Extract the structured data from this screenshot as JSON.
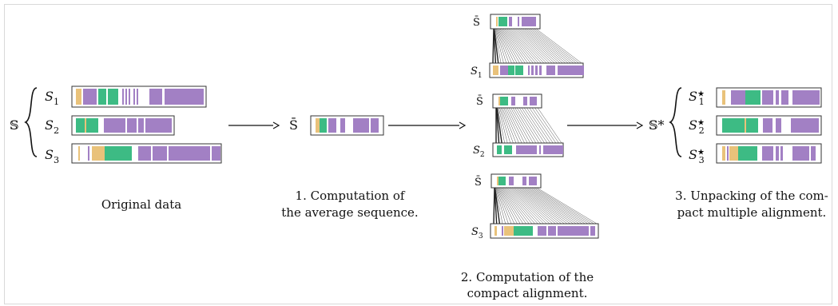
{
  "colors": {
    "tan": "#e9c27a",
    "green": "#3dbb84",
    "purple": "#a280c4",
    "box_stroke": "#333333",
    "lines": "#555555"
  },
  "labels": {
    "set": "𝕊",
    "set_star": "𝕊*",
    "s_bar": "S̄",
    "s1": "S1",
    "s2": "S2",
    "s3": "S3",
    "s1_star": "S1*",
    "s2_star": "S2*",
    "s3_star": "S3*"
  },
  "captions": {
    "original": "Original data",
    "step1_line1": "1.  Computation of",
    "step1_line2": "the average sequence.",
    "step2_line1": "2.  Computation of the",
    "step2_line2": "compact alignment.",
    "step3_line1": "3.  Unpacking of the com-",
    "step3_line2": "pact multiple alignment."
  },
  "sequences": {
    "original": [
      [
        [
          "tan",
          2,
          9
        ],
        [
          "purple",
          11,
          28
        ],
        [
          "green",
          30,
          40
        ],
        [
          "green",
          42,
          55
        ],
        [
          "purple",
          60,
          62
        ],
        [
          "purple",
          64,
          66
        ],
        [
          "purple",
          68,
          70
        ],
        [
          "purple",
          74,
          76
        ],
        [
          "purple",
          78,
          80
        ],
        [
          "purple",
          94,
          110
        ],
        [
          "purple",
          113,
          162
        ]
      ],
      [
        [
          "green",
          2,
          13
        ],
        [
          "tan",
          13,
          15
        ],
        [
          "green",
          15,
          30
        ],
        [
          "purple",
          37,
          64
        ],
        [
          "purple",
          66,
          78
        ],
        [
          "purple",
          80,
          87
        ],
        [
          "purple",
          89,
          122
        ]
      ],
      [
        [
          "tan",
          5,
          7
        ],
        [
          "purple",
          17,
          19
        ],
        [
          "tan",
          22,
          38
        ],
        [
          "green",
          38,
          72
        ],
        [
          "purple",
          80,
          96
        ],
        [
          "purple",
          98,
          116
        ],
        [
          "purple",
          118,
          170
        ],
        [
          "purple",
          172,
          183
        ]
      ]
    ],
    "average": [
      [
        "tan",
        3,
        8
      ],
      [
        "green",
        8,
        11
      ],
      [
        "green",
        11,
        17
      ],
      [
        "purple",
        19,
        29
      ],
      [
        "purple",
        34,
        40
      ],
      [
        "purple",
        50,
        70
      ],
      [
        "purple",
        72,
        82
      ]
    ],
    "unpacked": [
      [
        [
          "tan",
          4,
          8
        ],
        [
          "purple",
          15,
          33
        ],
        [
          "green",
          33,
          52
        ],
        [
          "purple",
          54,
          68
        ],
        [
          "purple",
          71,
          75
        ],
        [
          "purple",
          78,
          87
        ],
        [
          "purple",
          92,
          126
        ]
      ],
      [
        [
          "green",
          4,
          32
        ],
        [
          "tan",
          32,
          34
        ],
        [
          "green",
          34,
          49
        ],
        [
          "purple",
          55,
          67
        ],
        [
          "purple",
          71,
          78
        ],
        [
          "purple",
          90,
          125
        ]
      ],
      [
        [
          "tan",
          4,
          8
        ],
        [
          "purple",
          10,
          12
        ],
        [
          "tan",
          13,
          24
        ],
        [
          "green",
          24,
          48
        ],
        [
          "purple",
          54,
          68
        ],
        [
          "purple",
          71,
          75
        ],
        [
          "purple",
          77,
          80
        ],
        [
          "purple",
          92,
          113
        ],
        [
          "purple",
          115,
          121
        ]
      ]
    ]
  },
  "alignments": [
    {
      "bar": [
        [
          "tan",
          4,
          6
        ],
        [
          "green",
          7,
          10
        ],
        [
          "green",
          10,
          18
        ],
        [
          "purple",
          20,
          24
        ],
        [
          "purple",
          31,
          33
        ],
        [
          "purple",
          36,
          54
        ]
      ],
      "seq": [
        [
          "tan",
          1,
          8
        ],
        [
          "purple",
          10,
          20
        ],
        [
          "green",
          20,
          28
        ],
        [
          "green",
          29,
          39
        ],
        [
          "purple",
          45,
          47
        ],
        [
          "purple",
          49,
          52
        ],
        [
          "purple",
          54,
          57
        ],
        [
          "purple",
          59,
          62
        ],
        [
          "purple",
          68,
          79
        ],
        [
          "purple",
          82,
          115
        ]
      ]
    },
    {
      "bar": [
        [
          "tan",
          4,
          6
        ],
        [
          "green",
          6,
          9
        ],
        [
          "green",
          9,
          16
        ],
        [
          "purple",
          20,
          25
        ],
        [
          "purple",
          35,
          40
        ],
        [
          "purple",
          43,
          52
        ]
      ],
      "seq": [
        [
          "green",
          2,
          8
        ],
        [
          "green",
          11,
          21
        ],
        [
          "purple",
          26,
          52
        ],
        [
          "purple",
          55,
          57
        ],
        [
          "purple",
          60,
          85
        ]
      ]
    },
    {
      "bar": [
        [
          "tan",
          4,
          6
        ],
        [
          "green",
          6,
          9
        ],
        [
          "green",
          9,
          15
        ],
        [
          "purple",
          19,
          25
        ],
        [
          "purple",
          36,
          41
        ],
        [
          "purple",
          44,
          54
        ]
      ],
      "seq": [
        [
          "tan",
          2,
          5
        ],
        [
          "purple",
          11,
          13
        ],
        [
          "tan",
          14,
          26
        ],
        [
          "green",
          26,
          50
        ],
        [
          "purple",
          56,
          67
        ],
        [
          "purple",
          69,
          79
        ],
        [
          "purple",
          81,
          120
        ],
        [
          "purple",
          122,
          128
        ]
      ]
    }
  ]
}
